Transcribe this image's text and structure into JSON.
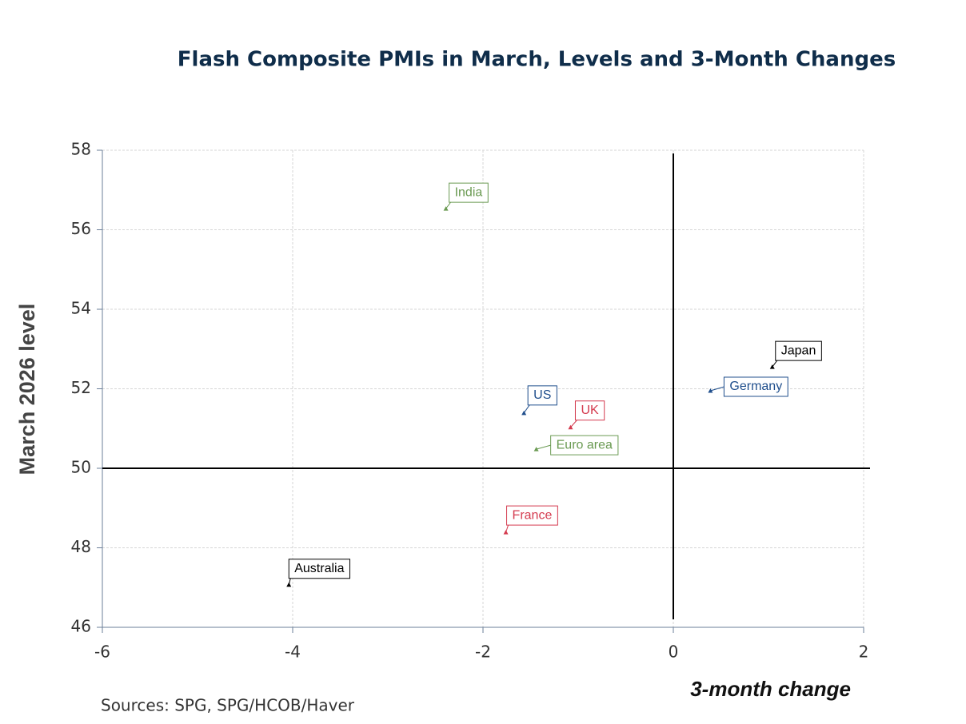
{
  "chart_data": {
    "type": "scatter",
    "title": "Flash Composite PMIs in March, Levels and 3-Month Changes",
    "x_label": "3-month change",
    "y_label": "March 2026 level",
    "source": "Sources:  SPG, SPG/HCOB/Haver",
    "series": [
      {
        "name": "India",
        "color": "#6a9a52",
        "x": [
          -2.39
        ],
        "y": [
          56.53
        ]
      },
      {
        "name": "Japan",
        "color": "#000000",
        "x": [
          1.04
        ],
        "y": [
          52.55
        ]
      },
      {
        "name": "Germany",
        "color": "#1f4e8c",
        "x": [
          0.39
        ],
        "y": [
          51.95
        ]
      },
      {
        "name": "US",
        "color": "#1f4e8c",
        "x": [
          -1.57
        ],
        "y": [
          51.39
        ]
      },
      {
        "name": "UK",
        "color": "#d43a4e",
        "x": [
          -1.08
        ],
        "y": [
          51.03
        ]
      },
      {
        "name": "Euro area",
        "color": "#6a9a52",
        "x": [
          -1.44
        ],
        "y": [
          50.48
        ]
      },
      {
        "name": "France",
        "color": "#d43a4e",
        "x": [
          -1.76
        ],
        "y": [
          48.39
        ]
      },
      {
        "name": "Australia",
        "color": "#000000",
        "x": [
          -4.04
        ],
        "y": [
          47.07
        ]
      }
    ],
    "xlim": [
      -6,
      2
    ],
    "xticks": [
      -6,
      -4,
      -2,
      0,
      2
    ],
    "ylim": [
      46,
      58
    ],
    "yticks": [
      46,
      48,
      50,
      52,
      54,
      56,
      58
    ],
    "reference_lines": {
      "x": 0,
      "y": 50
    },
    "grid": true
  }
}
